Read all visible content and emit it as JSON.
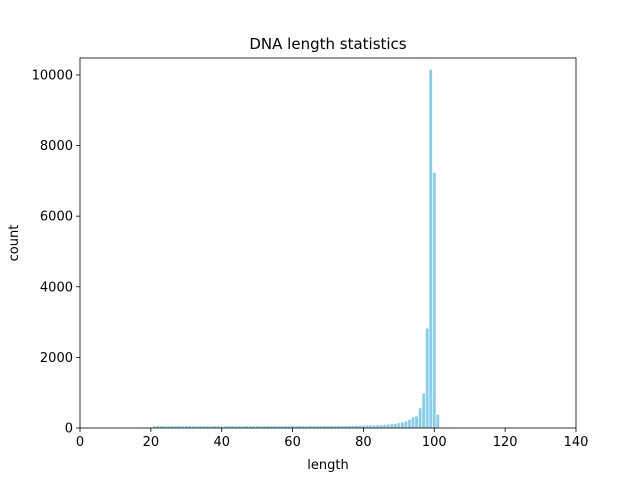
{
  "chart_data": {
    "type": "bar",
    "title": "DNA length statistics",
    "x_label": "length",
    "y_label": "count",
    "x": [
      21,
      22,
      23,
      24,
      25,
      26,
      27,
      28,
      29,
      30,
      31,
      32,
      33,
      34,
      35,
      36,
      37,
      38,
      39,
      40,
      41,
      42,
      43,
      44,
      45,
      46,
      47,
      48,
      49,
      50,
      51,
      52,
      53,
      54,
      55,
      56,
      57,
      58,
      59,
      60,
      61,
      62,
      63,
      64,
      65,
      66,
      67,
      68,
      69,
      70,
      71,
      72,
      73,
      74,
      75,
      76,
      77,
      78,
      79,
      80,
      81,
      82,
      83,
      84,
      85,
      86,
      87,
      88,
      89,
      90,
      91,
      92,
      93,
      94,
      95,
      96,
      97,
      98,
      99,
      100,
      101
    ],
    "values": [
      50,
      55,
      52,
      50,
      48,
      53,
      50,
      55,
      52,
      50,
      54,
      50,
      48,
      52,
      50,
      53,
      50,
      55,
      52,
      45,
      50,
      52,
      54,
      50,
      52,
      50,
      55,
      50,
      52,
      54,
      50,
      52,
      55,
      50,
      53,
      50,
      52,
      55,
      50,
      60,
      52,
      55,
      53,
      50,
      58,
      55,
      52,
      54,
      56,
      55,
      58,
      55,
      60,
      58,
      56,
      62,
      60,
      65,
      62,
      68,
      70,
      72,
      75,
      78,
      80,
      90,
      100,
      110,
      120,
      140,
      160,
      190,
      230,
      300,
      330,
      560,
      980,
      2820,
      10150,
      7230,
      380
    ],
    "color": "#87ceeb",
    "bar_width": 0.8,
    "xlim": [
      0,
      140
    ],
    "xticks": [
      0,
      20,
      40,
      60,
      80,
      100,
      120,
      140
    ],
    "ylim": [
      0,
      10480
    ],
    "yticks": [
      0,
      2000,
      4000,
      6000,
      8000,
      10000
    ]
  }
}
